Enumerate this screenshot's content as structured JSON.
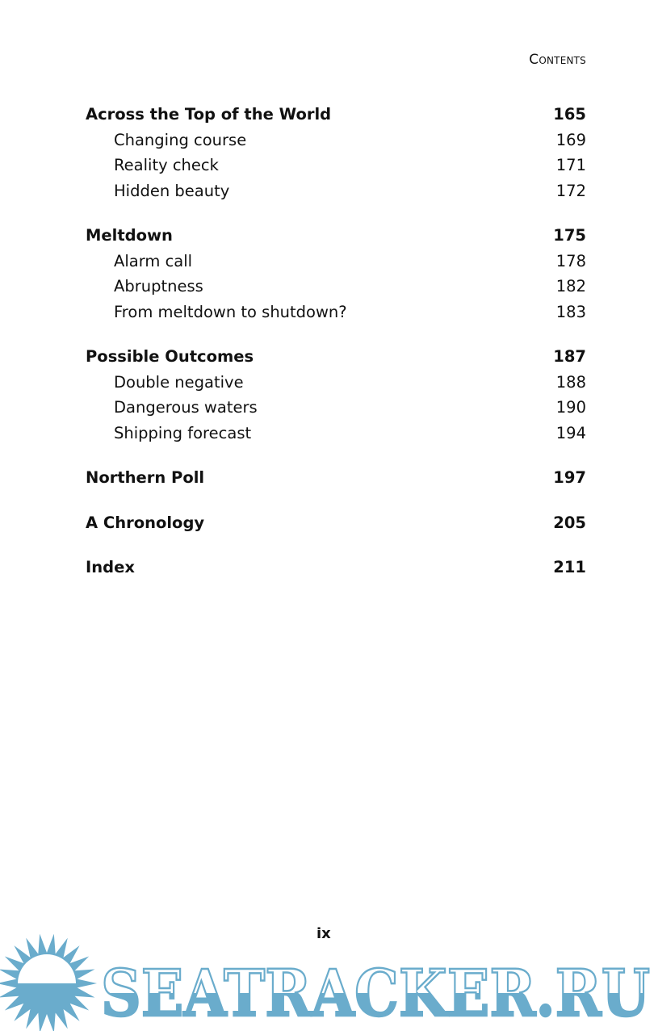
{
  "running_head": "Contents",
  "toc": [
    {
      "title": "Across the Top of the World",
      "page": "165",
      "subs": [
        {
          "title": "Changing course",
          "page": "169"
        },
        {
          "title": "Reality check",
          "page": "171"
        },
        {
          "title": "Hidden beauty",
          "page": "172"
        }
      ]
    },
    {
      "title": "Meltdown",
      "page": "175",
      "subs": [
        {
          "title": "Alarm call",
          "page": "178"
        },
        {
          "title": "Abruptness",
          "page": "182"
        },
        {
          "title": "From meltdown to shutdown?",
          "page": "183"
        }
      ]
    },
    {
      "title": "Possible Outcomes",
      "page": "187",
      "subs": [
        {
          "title": "Double negative",
          "page": "188"
        },
        {
          "title": "Dangerous waters",
          "page": "190"
        },
        {
          "title": "Shipping forecast",
          "page": "194"
        }
      ]
    },
    {
      "title": "Northern Poll",
      "page": "197",
      "subs": []
    },
    {
      "title": "A Chronology",
      "page": "205",
      "subs": []
    },
    {
      "title": "Index",
      "page": "211",
      "subs": []
    }
  ],
  "page_number": "ix",
  "watermark": {
    "text": "SEATRACKER.RU",
    "color": "#6aaccc",
    "icon": "sun-icon"
  }
}
